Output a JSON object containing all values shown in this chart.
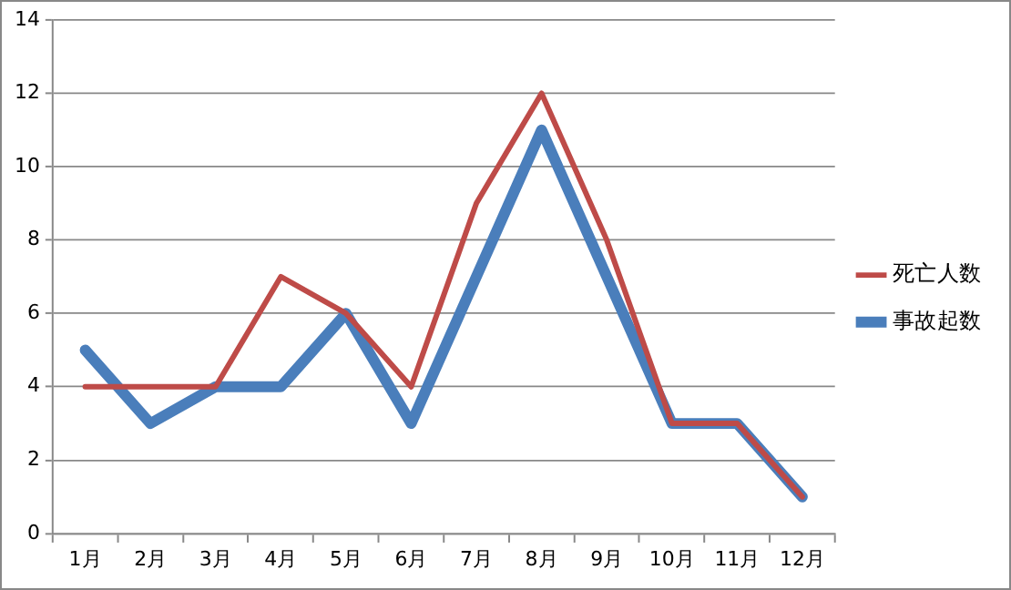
{
  "chart_data": {
    "type": "line",
    "categories": [
      "1月",
      "2月",
      "3月",
      "4月",
      "5月",
      "6月",
      "7月",
      "8月",
      "9月",
      "10月",
      "11月",
      "12月"
    ],
    "series": [
      {
        "name": "事故起数",
        "color": "#4a7ebb",
        "values": [
          5,
          3,
          4,
          4,
          6,
          3,
          7,
          11,
          7,
          3,
          3,
          1
        ]
      },
      {
        "name": "死亡人数",
        "color": "#be4b48",
        "values": [
          4,
          4,
          4,
          7,
          6,
          4,
          9,
          12,
          8,
          3,
          3,
          1
        ]
      }
    ],
    "ylim": [
      0,
      14
    ],
    "yticks": [
      0,
      2,
      4,
      6,
      8,
      10,
      12,
      14
    ],
    "grid": "y",
    "legend": "right",
    "marker": "none",
    "line_style": "solid"
  }
}
